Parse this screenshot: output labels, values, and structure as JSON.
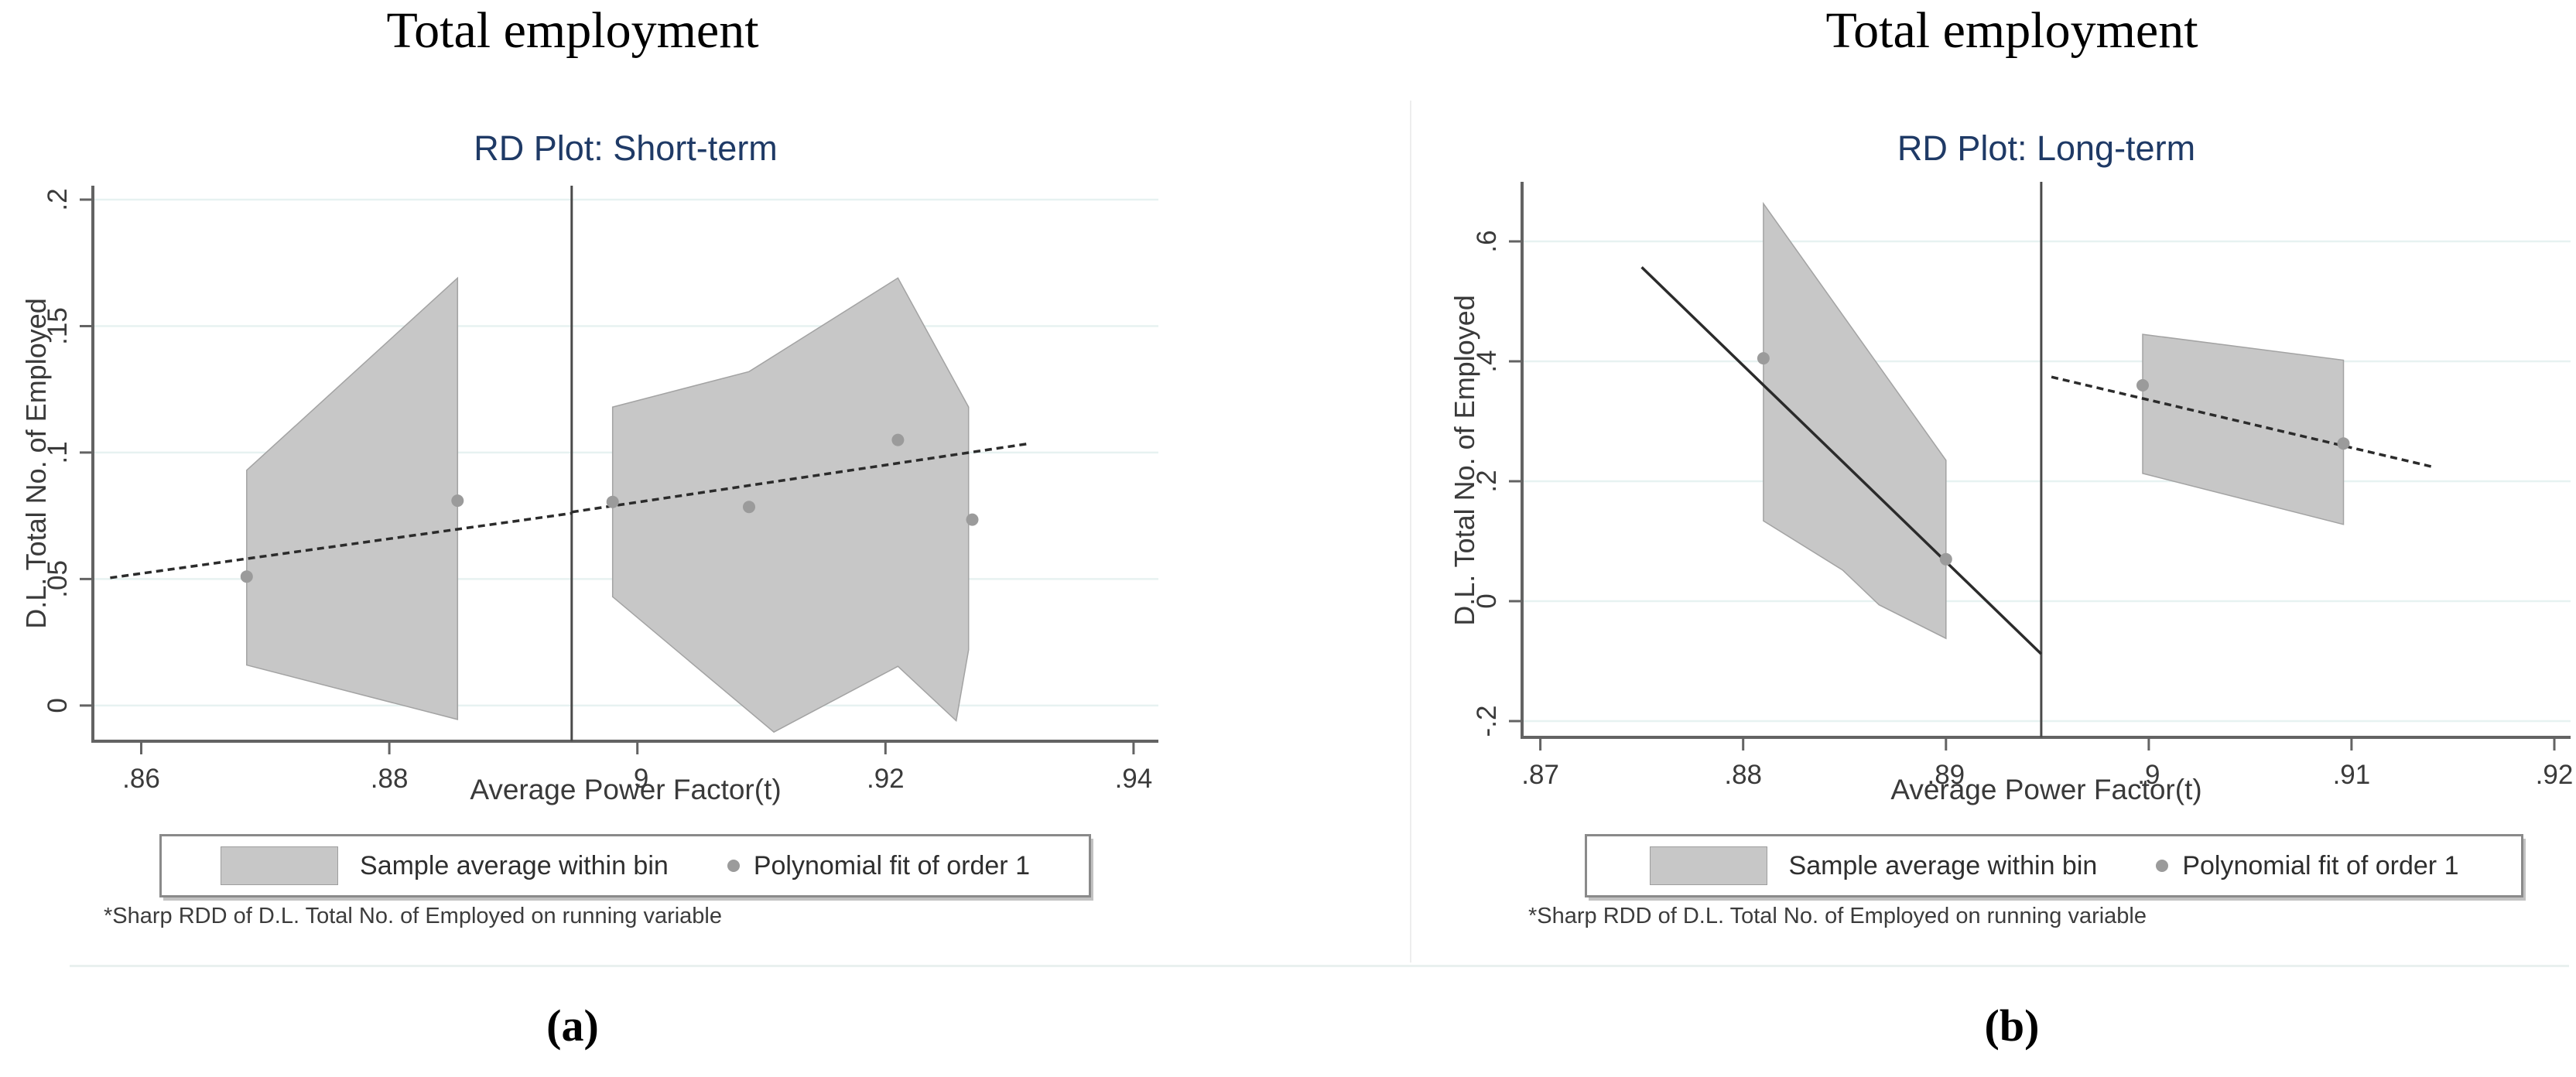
{
  "panels": [
    {
      "figure_title": "Total employment",
      "plot_title": "RD Plot: Short-term",
      "panel_label": "(a)",
      "x_label": "Average Power Factor(t)",
      "y_label": "D.L. Total No. of Employed",
      "legend": {
        "bin_label": "Sample average within bin",
        "fit_label": "Polynomial fit of order 1"
      },
      "footnote": "*Sharp RDD of D.L. Total No. of Employed on running variable"
    },
    {
      "figure_title": "Total employment",
      "plot_title": "RD Plot: Long-term",
      "panel_label": "(b)",
      "x_label": "Average Power Factor(t)",
      "y_label": "D.L. Total No. of Employed",
      "legend": {
        "bin_label": "Sample average within bin",
        "fit_label": "Polynomial fit of order 1"
      },
      "footnote": "*Sharp RDD of D.L. Total No. of Employed on running variable"
    }
  ],
  "colors": {
    "plot_title": "#1f3a66",
    "axis": "#636363",
    "tick_text": "#3a3a3a",
    "grid": "#e7f2f1",
    "polygon_fill": "#c7c7c7",
    "polygon_edge": "#a3a3a3",
    "dot": "#9b9b9b",
    "fit_line": "#2b2b2b",
    "cutoff": "#4a4a4a"
  },
  "chart_data": [
    {
      "type": "line",
      "subtype": "regression-discontinuity-plot",
      "title": "RD Plot: Short-term",
      "xlabel": "Average Power Factor(t)",
      "ylabel": "D.L. Total No. of Employed",
      "xlim": [
        0.8561,
        0.942
      ],
      "ylim": [
        -0.0141,
        0.2055
      ],
      "xticks": [
        0.86,
        0.88,
        0.9,
        0.92,
        0.94
      ],
      "xtick_labels": [
        ".86",
        ".88",
        ".9",
        ".92",
        ".94"
      ],
      "yticks": [
        0,
        0.05,
        0.1,
        0.15,
        0.2
      ],
      "ytick_labels": [
        "0",
        ".05",
        ".1",
        ".15",
        ".2"
      ],
      "grid": true,
      "legend_position": "bottom",
      "cutoff_x": 0.8947,
      "bin_points": [
        [
          0.8685,
          0.051
        ],
        [
          0.8855,
          0.081
        ],
        [
          0.898,
          0.0805
        ],
        [
          0.909,
          0.0785
        ],
        [
          0.921,
          0.105
        ],
        [
          0.927,
          0.0735
        ]
      ],
      "fit_segments": [
        {
          "style": "dashed",
          "points": [
            [
              0.8575,
              0.0505
            ],
            [
              0.8947,
              0.076
            ]
          ]
        },
        {
          "style": "dashed",
          "points": [
            [
              0.8947,
              0.0765
            ],
            [
              0.9315,
              0.1035
            ]
          ]
        }
      ],
      "bin_polygons": [
        [
          [
            0.8685,
            0.093
          ],
          [
            0.8855,
            0.169
          ],
          [
            0.8855,
            -0.0055
          ],
          [
            0.8685,
            0.016
          ]
        ],
        [
          [
            0.898,
            0.118
          ],
          [
            0.909,
            0.132
          ],
          [
            0.921,
            0.169
          ],
          [
            0.9267,
            0.118
          ],
          [
            0.9267,
            0.022
          ],
          [
            0.9257,
            -0.006
          ],
          [
            0.921,
            0.0155
          ],
          [
            0.911,
            -0.0105
          ],
          [
            0.898,
            0.043
          ]
        ]
      ]
    },
    {
      "type": "line",
      "subtype": "regression-discontinuity-plot",
      "title": "RD Plot: Long-term",
      "xlabel": "Average Power Factor(t)",
      "ylabel": "D.L. Total No. of Employed",
      "xlim": [
        0.8691,
        0.9208
      ],
      "ylim": [
        -0.2271,
        0.6994
      ],
      "xticks": [
        0.87,
        0.88,
        0.89,
        0.9,
        0.91,
        0.92
      ],
      "xtick_labels": [
        ".87",
        ".88",
        ".89",
        ".9",
        ".91",
        ".92"
      ],
      "yticks": [
        -0.2,
        0,
        0.2,
        0.4,
        0.6
      ],
      "ytick_labels": [
        "-.2",
        "0",
        ".2",
        ".4",
        ".6"
      ],
      "grid": true,
      "legend_position": "bottom",
      "cutoff_x": 0.8947,
      "bin_points": [
        [
          0.881,
          0.405
        ],
        [
          0.89,
          0.07
        ],
        [
          0.8997,
          0.36
        ],
        [
          0.9096,
          0.263
        ]
      ],
      "fit_segments": [
        {
          "style": "solid",
          "points": [
            [
              0.875,
              0.557
            ],
            [
              0.8947,
              -0.088
            ]
          ]
        },
        {
          "style": "dashed",
          "points": [
            [
              0.8952,
              0.374
            ],
            [
              0.914,
              0.224
            ]
          ]
        }
      ],
      "bin_polygons": [
        [
          [
            0.881,
            0.663
          ],
          [
            0.89,
            0.235
          ],
          [
            0.89,
            -0.062
          ],
          [
            0.8867,
            -0.006
          ],
          [
            0.8849,
            0.052
          ],
          [
            0.881,
            0.134
          ]
        ],
        [
          [
            0.8997,
            0.445
          ],
          [
            0.9096,
            0.402
          ],
          [
            0.9096,
            0.128
          ],
          [
            0.8997,
            0.213
          ]
        ]
      ]
    }
  ]
}
